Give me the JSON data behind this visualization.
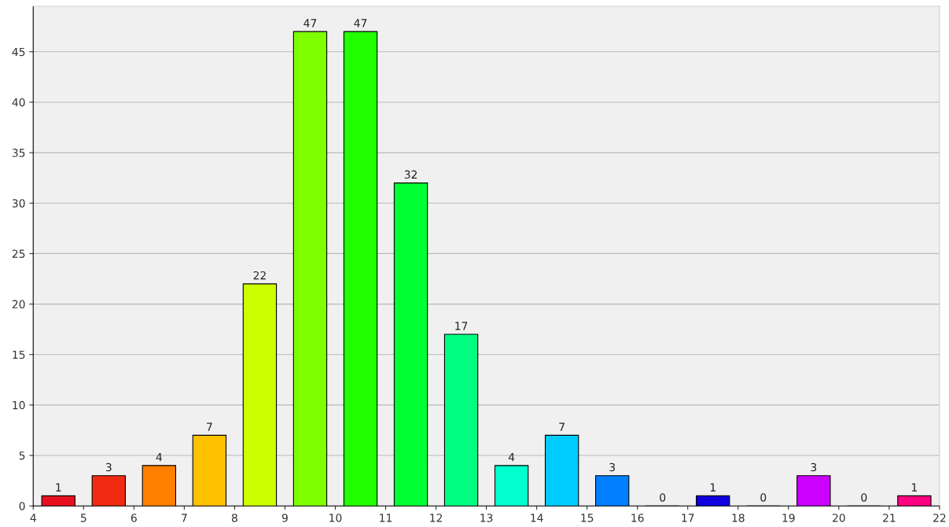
{
  "chart_data": {
    "type": "histogram",
    "bins": [
      4,
      5,
      6,
      7,
      8,
      9,
      10,
      11,
      12,
      13,
      14,
      15,
      16,
      17,
      18,
      19,
      20,
      21,
      22
    ],
    "values": [
      1,
      3,
      4,
      7,
      22,
      47,
      47,
      32,
      17,
      4,
      7,
      3,
      0,
      1,
      0,
      3,
      0,
      1
    ],
    "colors": [
      "#e8101e",
      "#f02a10",
      "#ff7f00",
      "#ffc000",
      "#ccff00",
      "#80ff00",
      "#22ff00",
      "#00ff33",
      "#00ff80",
      "#00ffcc",
      "#00ccff",
      "#0080ff",
      "#0040ff",
      "#1000e0",
      "#8000ff",
      "#cc00ff",
      "#ff00cc",
      "#ff0080"
    ],
    "xlim": [
      4,
      22
    ],
    "xticks": [
      4,
      5,
      6,
      7,
      8,
      9,
      10,
      11,
      12,
      13,
      14,
      15,
      16,
      17,
      18,
      19,
      20,
      21,
      22
    ],
    "ylim": [
      0,
      49.5
    ],
    "yticks": [
      0,
      5,
      10,
      15,
      20,
      25,
      30,
      35,
      40,
      45
    ],
    "grid": "y",
    "data_labels": true,
    "legend": false
  }
}
